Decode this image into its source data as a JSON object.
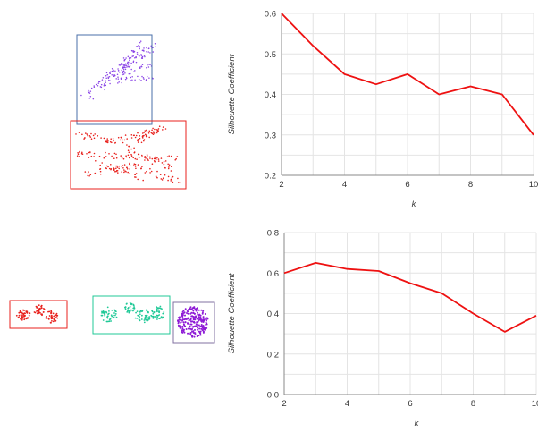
{
  "colors": {
    "line": "#ee1111",
    "grid": "#e4e4e4",
    "axis": "#888888",
    "red_cluster": "#e8211d",
    "purple_cluster": "#8a44e6",
    "blue_box": "#4a6fa8",
    "teal_cluster": "#20c997",
    "violet_cluster": "#8e1bd6",
    "grey_box": "#8070a0"
  },
  "chart_data": [
    {
      "type": "line",
      "x": [
        2,
        3,
        4,
        5,
        6,
        7,
        8,
        9,
        10
      ],
      "series": [
        {
          "values": [
            0.6,
            0.52,
            0.45,
            0.425,
            0.45,
            0.4,
            0.42,
            0.4,
            0.3
          ]
        }
      ],
      "xlabel": "k",
      "ylabel": "Silhouette Coefficient",
      "xlim": [
        2,
        10
      ],
      "ylim": [
        0.2,
        0.6
      ],
      "xticks": [
        "2",
        "4",
        "6",
        "8",
        "10"
      ],
      "yticks": [
        "0.2",
        "0.3",
        "0.4",
        "0.5",
        "0.6"
      ],
      "grid": true
    },
    {
      "type": "line",
      "x": [
        2,
        3,
        4,
        5,
        6,
        7,
        8,
        9,
        10
      ],
      "series": [
        {
          "values": [
            0.6,
            0.65,
            0.62,
            0.61,
            0.55,
            0.5,
            0.4,
            0.31,
            0.39
          ]
        }
      ],
      "xlabel": "k",
      "ylabel": "Silhouette Coefficient",
      "xlim": [
        2,
        10
      ],
      "ylim": [
        0.0,
        0.8
      ],
      "xticks": [
        "2",
        "4",
        "6",
        "8",
        "10"
      ],
      "yticks": [
        "0.0",
        "0.2",
        "0.4",
        "0.6",
        "0.8"
      ],
      "grid": true
    }
  ]
}
